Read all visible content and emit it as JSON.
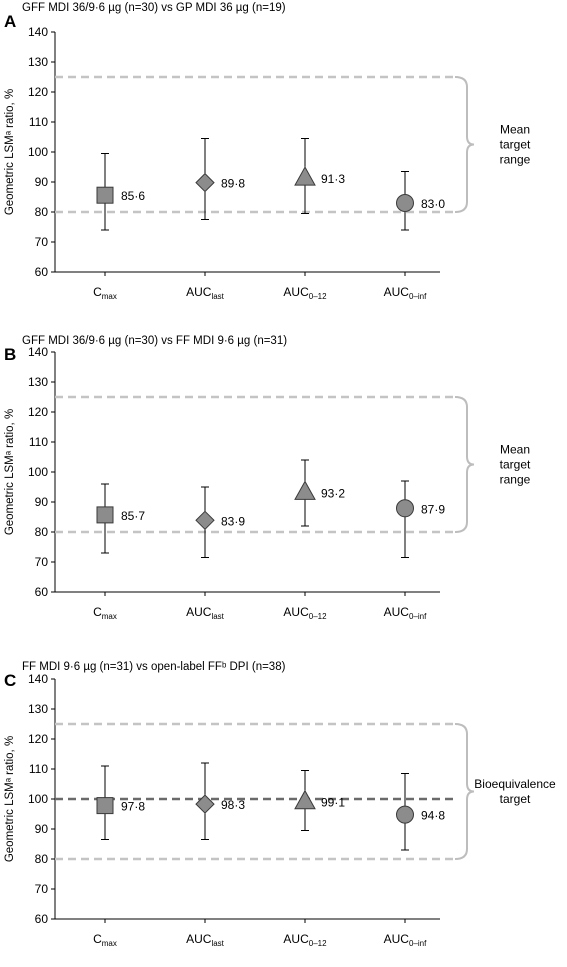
{
  "chart_data": [
    {
      "type": "scatter",
      "panel": "A",
      "title": "GFF MDI 36/9·6 µg (n=30) vs GP MDI 36 µg (n=19)",
      "ylabel": "Geometric LSMᵃ ratio, %",
      "ylim": [
        60,
        140
      ],
      "yticks": [
        60,
        70,
        80,
        90,
        100,
        110,
        120,
        130,
        140
      ],
      "categories": [
        {
          "base": "C",
          "sub": "max"
        },
        {
          "base": "AUC",
          "sub": "last"
        },
        {
          "base": "AUC",
          "sub": "0–12"
        },
        {
          "base": "AUC",
          "sub": "0–inf"
        }
      ],
      "markers": [
        "square",
        "diamond",
        "triangle",
        "circle"
      ],
      "values": [
        85.6,
        89.8,
        91.3,
        83.0
      ],
      "labels": [
        "85·6",
        "89·8",
        "91·3",
        "83·0"
      ],
      "ci_low": [
        74,
        77.5,
        79.5,
        74
      ],
      "ci_high": [
        99.5,
        104.5,
        104.5,
        93.5
      ],
      "reference_lines": [
        80,
        125
      ],
      "center_line": null,
      "range_label": [
        "Mean",
        "target",
        "range"
      ]
    },
    {
      "type": "scatter",
      "panel": "B",
      "title": "GFF MDI 36/9·6 µg (n=30) vs FF MDI 9·6 µg (n=31)",
      "ylabel": "Geometric LSMᵃ ratio, %",
      "ylim": [
        60,
        140
      ],
      "yticks": [
        60,
        70,
        80,
        90,
        100,
        110,
        120,
        130,
        140
      ],
      "categories": [
        {
          "base": "C",
          "sub": "max"
        },
        {
          "base": "AUC",
          "sub": "last"
        },
        {
          "base": "AUC",
          "sub": "0–12"
        },
        {
          "base": "AUC",
          "sub": "0–inf"
        }
      ],
      "markers": [
        "square",
        "diamond",
        "triangle",
        "circle"
      ],
      "values": [
        85.7,
        83.9,
        93.2,
        87.9
      ],
      "labels": [
        "85·7",
        "83·9",
        "93·2",
        "87·9"
      ],
      "ci_low": [
        73,
        71.5,
        82,
        71.5
      ],
      "ci_high": [
        96,
        95,
        104,
        97
      ],
      "reference_lines": [
        80,
        125
      ],
      "center_line": null,
      "range_label": [
        "Mean",
        "target",
        "range"
      ]
    },
    {
      "type": "scatter",
      "panel": "C",
      "title": "FF MDI 9·6 µg (n=31) vs open-label FFᵇ DPI (n=38)",
      "ylabel": "Geometric LSMᵃ ratio, %",
      "ylim": [
        60,
        140
      ],
      "yticks": [
        60,
        70,
        80,
        90,
        100,
        110,
        120,
        130,
        140
      ],
      "categories": [
        {
          "base": "C",
          "sub": "max"
        },
        {
          "base": "AUC",
          "sub": "last"
        },
        {
          "base": "AUC",
          "sub": "0–12"
        },
        {
          "base": "AUC",
          "sub": "0–inf"
        }
      ],
      "markers": [
        "square",
        "diamond",
        "triangle",
        "circle"
      ],
      "values": [
        97.8,
        98.3,
        99.1,
        94.8
      ],
      "labels": [
        "97·8",
        "98·3",
        "99·1",
        "94·8"
      ],
      "ci_low": [
        86.5,
        86.5,
        89.5,
        83
      ],
      "ci_high": [
        111,
        112,
        109.5,
        108.5
      ],
      "reference_lines": [
        80,
        125
      ],
      "center_line": 100,
      "range_label": [
        "Bioequivalence",
        "target"
      ]
    }
  ],
  "colors": {
    "marker_fill": "#8c8c8c",
    "marker_stroke": "#3a3a3a",
    "reference_line": "#c4c4c4",
    "center_line": "#6a6a6a",
    "bracket": "#bdbdbd",
    "axis": "#000000"
  }
}
